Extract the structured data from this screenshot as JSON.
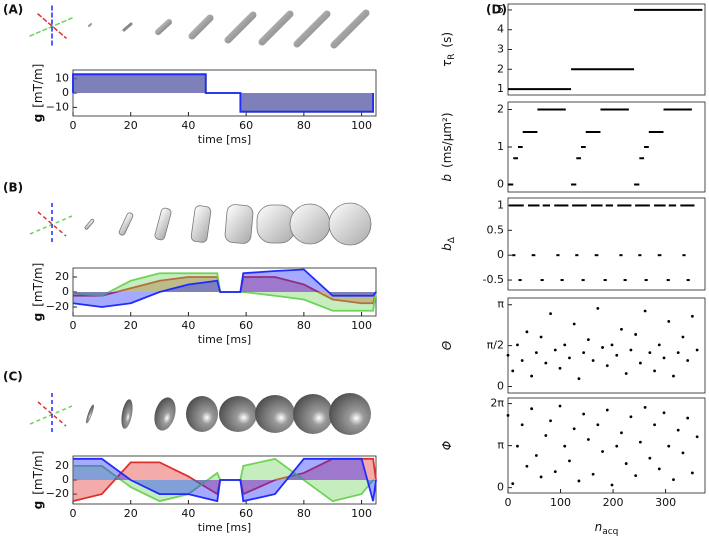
{
  "chart_data": [
    {
      "type": "area",
      "panel": "(A)",
      "ylabel": {
        "symbol": "g",
        "unit": "[mT/m]"
      },
      "xlabel": "time [ms]",
      "x": [
        0,
        0,
        46,
        46,
        58,
        58,
        104,
        104
      ],
      "series": [
        {
          "color": "#e0302a",
          "values": [
            0,
            13,
            13,
            0,
            0,
            -13,
            -13,
            0
          ]
        },
        {
          "color": "#6fd35a",
          "values": [
            0,
            13,
            13,
            0,
            0,
            -13,
            -13,
            0
          ]
        },
        {
          "color": "#1f2bff",
          "values": [
            0,
            13,
            13,
            0,
            0,
            -13,
            -13,
            0
          ]
        }
      ],
      "xlim": [
        0,
        105
      ],
      "xticks": [
        0,
        20,
        40,
        60,
        80,
        100
      ],
      "ylim": [
        -16,
        16
      ],
      "yticks": [
        {
          "value": -10,
          "label": "−10"
        },
        0,
        10
      ]
    },
    {
      "type": "area",
      "panel": "(B)",
      "ylabel": {
        "symbol": "g",
        "unit": "[mT/m]"
      },
      "xlabel": "time [ms]",
      "x": [
        0,
        10,
        20,
        30,
        40,
        50,
        51,
        58,
        59,
        70,
        80,
        90,
        100,
        104,
        105
      ],
      "series": [
        {
          "color": "#e0302a",
          "values": [
            -5,
            -5,
            5,
            15,
            20,
            20,
            0,
            0,
            20,
            20,
            10,
            -10,
            -15,
            -15,
            0
          ]
        },
        {
          "color": "#6fd35a",
          "values": [
            -2,
            -5,
            15,
            25,
            25,
            25,
            0,
            0,
            0,
            -5,
            -10,
            -25,
            -25,
            -25,
            0
          ]
        },
        {
          "color": "#1f2bff",
          "values": [
            -15,
            -20,
            -15,
            0,
            10,
            15,
            0,
            0,
            25,
            28,
            30,
            -5,
            -5,
            -5,
            0
          ]
        }
      ],
      "xlim": [
        0,
        105
      ],
      "xticks": [
        0,
        20,
        40,
        60,
        80,
        100
      ],
      "ylim": [
        -32,
        32
      ],
      "yticks": [
        {
          "value": -20,
          "label": "−20"
        },
        0,
        20
      ]
    },
    {
      "type": "area",
      "panel": "(C)",
      "ylabel": {
        "symbol": "g",
        "unit": "[mT/m]"
      },
      "xlabel": "time [ms]",
      "x": [
        0,
        10,
        20,
        30,
        40,
        50,
        51,
        58,
        59,
        70,
        80,
        90,
        100,
        104,
        105
      ],
      "series": [
        {
          "color": "#e0302a",
          "values": [
            -30,
            -20,
            25,
            25,
            5,
            -20,
            0,
            0,
            -20,
            0,
            10,
            30,
            30,
            30,
            0
          ]
        },
        {
          "color": "#6fd35a",
          "values": [
            20,
            20,
            -10,
            -30,
            -20,
            10,
            0,
            0,
            20,
            30,
            0,
            -30,
            -20,
            0,
            0
          ]
        },
        {
          "color": "#1f2bff",
          "values": [
            30,
            30,
            0,
            -20,
            -20,
            -30,
            0,
            0,
            -30,
            -20,
            30,
            30,
            30,
            -30,
            0
          ]
        }
      ],
      "xlim": [
        0,
        105
      ],
      "xticks": [
        0,
        20,
        40,
        60,
        80,
        100
      ],
      "ylim": [
        -34,
        34
      ],
      "yticks": [
        {
          "value": -20,
          "label": "−20"
        },
        0,
        20
      ]
    },
    {
      "type": "segments",
      "panel": "(D)",
      "ylabel": {
        "symbol": "τ",
        "sub": "R",
        "unit": "(s)"
      },
      "x_start": [
        0,
        120,
        240
      ],
      "x_end": [
        120,
        240,
        370
      ],
      "values": [
        1,
        2,
        5
      ],
      "xlim": [
        0,
        375
      ],
      "ylim": [
        0.7,
        5.3
      ],
      "yticks": [
        1,
        2,
        3,
        4,
        5
      ]
    },
    {
      "type": "segments",
      "ylabel": {
        "symbol": "b",
        "unit": "(ms/μm²)"
      },
      "x_start": [
        0,
        10,
        19,
        28,
        56,
        120,
        130,
        139,
        148,
        176,
        240,
        250,
        259,
        268,
        296
      ],
      "x_end": [
        10,
        19,
        28,
        56,
        110,
        130,
        139,
        148,
        176,
        230,
        250,
        259,
        268,
        296,
        350
      ],
      "values": [
        0,
        0.7,
        1,
        1.4,
        2,
        0,
        0.7,
        1,
        1.4,
        2,
        0,
        0.7,
        1,
        1.4,
        2
      ],
      "xlim": [
        0,
        375
      ],
      "ylim": [
        -0.2,
        2.2
      ],
      "yticks": [
        0,
        1,
        2
      ]
    },
    {
      "type": "segments",
      "ylabel": {
        "symbol": "b",
        "sub": "Δ"
      },
      "x_start": [
        2,
        38,
        66,
        88,
        8,
        45,
        92,
        20,
        62,
        100,
        122,
        158,
        186,
        208,
        128,
        165,
        212,
        140,
        182,
        220,
        242,
        278,
        306,
        328,
        248,
        285,
        332,
        260,
        302,
        340
      ],
      "x_end": [
        30,
        60,
        80,
        115,
        14,
        52,
        98,
        26,
        68,
        106,
        150,
        180,
        200,
        235,
        134,
        172,
        218,
        146,
        188,
        226,
        270,
        300,
        320,
        355,
        254,
        292,
        338,
        266,
        308,
        346
      ],
      "values": [
        1,
        1,
        1,
        1,
        0,
        0,
        0,
        -0.5,
        -0.5,
        -0.5,
        1,
        1,
        1,
        1,
        0,
        0,
        0,
        -0.5,
        -0.5,
        -0.5,
        1,
        1,
        1,
        1,
        0,
        0,
        0,
        -0.5,
        -0.5,
        -0.5
      ],
      "xlim": [
        0,
        375
      ],
      "ylim": [
        -0.7,
        1.15
      ],
      "yticks": [
        -0.5,
        0,
        0.5,
        1
      ]
    },
    {
      "type": "scatter",
      "ylabel": {
        "symbol": "Θ"
      },
      "x": [
        0,
        9,
        18,
        27,
        36,
        45,
        54,
        63,
        72,
        81,
        90,
        99,
        108,
        117,
        126,
        135,
        144,
        153,
        162,
        171,
        180,
        189,
        198,
        207,
        216,
        225,
        234,
        243,
        252,
        261,
        270,
        279,
        288,
        297,
        306,
        315,
        324,
        333,
        342,
        351,
        360
      ],
      "values": [
        1.2,
        0.6,
        1.6,
        1.0,
        2.1,
        0.4,
        1.3,
        1.9,
        0.9,
        2.8,
        1.4,
        0.7,
        1.6,
        1.1,
        2.4,
        0.3,
        1.3,
        1.8,
        1.0,
        3.0,
        1.5,
        0.8,
        1.6,
        1.2,
        2.2,
        0.5,
        1.4,
        2.0,
        0.9,
        2.9,
        1.3,
        0.6,
        1.6,
        1.1,
        2.5,
        0.4,
        1.3,
        1.9,
        1.0,
        2.7,
        1.4
      ],
      "xlim": [
        0,
        375
      ],
      "ylim": [
        -0.25,
        3.4
      ],
      "yticks": [
        0,
        {
          "value": 1.5708,
          "label": "π/2"
        },
        {
          "value": 3.1416,
          "label": "π"
        }
      ]
    },
    {
      "type": "scatter",
      "ylabel": {
        "symbol": "Φ"
      },
      "xlabel": {
        "symbol": "n",
        "sub": "acq"
      },
      "x": [
        0,
        9,
        18,
        27,
        36,
        45,
        54,
        63,
        72,
        81,
        90,
        99,
        108,
        117,
        126,
        135,
        144,
        153,
        162,
        171,
        180,
        189,
        198,
        207,
        216,
        225,
        234,
        243,
        252,
        261,
        270,
        279,
        288,
        297,
        306,
        315,
        324,
        333,
        342,
        351,
        360
      ],
      "values": [
        5.4,
        0.3,
        3.1,
        4.7,
        1.6,
        5.9,
        2.4,
        0.8,
        3.9,
        5.0,
        1.2,
        6.1,
        3.1,
        2.0,
        4.4,
        0.5,
        5.5,
        3.6,
        1.0,
        4.7,
        2.7,
        5.8,
        0.2,
        3.1,
        4.1,
        1.8,
        5.3,
        0.9,
        3.4,
        6.0,
        2.2,
        4.7,
        1.4,
        5.6,
        3.1,
        0.6,
        4.3,
        2.6,
        5.2,
        1.1,
        3.8
      ],
      "xlim": [
        0,
        375
      ],
      "xticks": [
        0,
        100,
        200,
        300
      ],
      "ylim": [
        -0.4,
        6.7
      ],
      "yticks": [
        0,
        {
          "value": 3.1416,
          "label": "π"
        },
        {
          "value": 6.2832,
          "label": "2π"
        }
      ]
    }
  ]
}
